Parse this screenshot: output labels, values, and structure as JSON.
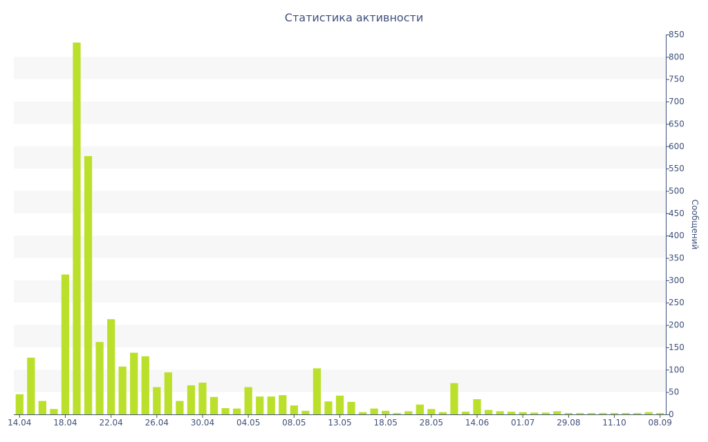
{
  "chart_data": {
    "type": "bar",
    "title": "Статистика активности",
    "xlabel": "",
    "ylabel": "Сообщений",
    "y_axis_side": "right",
    "ylim": [
      0,
      850
    ],
    "y_ticks": [
      0,
      50,
      100,
      150,
      200,
      250,
      300,
      350,
      400,
      450,
      500,
      550,
      600,
      650,
      700,
      750,
      800,
      850
    ],
    "x_tick_labels": [
      {
        "index": 0,
        "label": "14.04"
      },
      {
        "index": 4,
        "label": "18.04"
      },
      {
        "index": 8,
        "label": "22.04"
      },
      {
        "index": 12,
        "label": "26.04"
      },
      {
        "index": 16,
        "label": "30.04"
      },
      {
        "index": 20,
        "label": "04.05"
      },
      {
        "index": 24,
        "label": "08.05"
      },
      {
        "index": 28,
        "label": "13.05"
      },
      {
        "index": 32,
        "label": "18.05"
      },
      {
        "index": 36,
        "label": "28.05"
      },
      {
        "index": 40,
        "label": "14.06"
      },
      {
        "index": 44,
        "label": "01.07"
      },
      {
        "index": 48,
        "label": "29.08"
      },
      {
        "index": 52,
        "label": "11.10"
      },
      {
        "index": 56,
        "label": "08.09"
      }
    ],
    "values": [
      45,
      127,
      30,
      12,
      313,
      832,
      578,
      162,
      213,
      107,
      138,
      130,
      61,
      94,
      30,
      65,
      71,
      39,
      14,
      13,
      61,
      40,
      40,
      43,
      20,
      8,
      103,
      29,
      42,
      28,
      5,
      13,
      8,
      3,
      7,
      22,
      12,
      5,
      70,
      6,
      34,
      10,
      7,
      6,
      5,
      4,
      4,
      7,
      3,
      3,
      3,
      3,
      3,
      3,
      3,
      5,
      3
    ],
    "bar_color": "#bbe02b",
    "grid": "alternating horizontal bands",
    "legend": "none"
  },
  "colors": {
    "text": "#3e4f7a",
    "axis": "#3e4f7a",
    "band": "#f7f7f7"
  }
}
